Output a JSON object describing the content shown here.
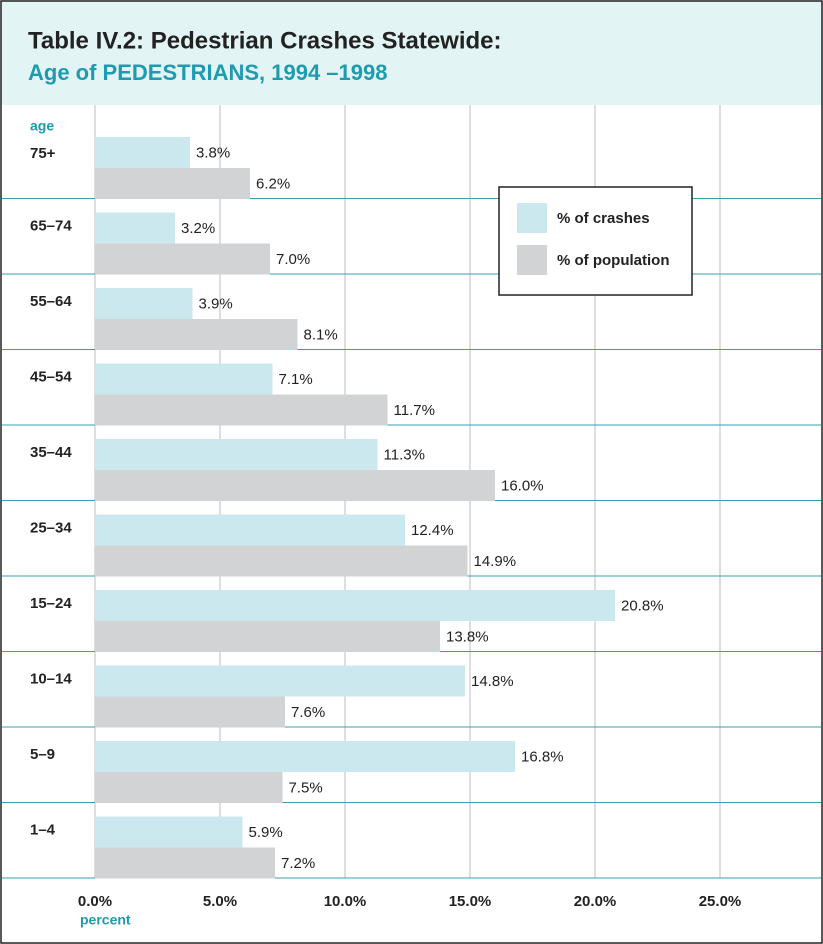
{
  "chart_data": {
    "type": "grouped-hbar",
    "title": "Table IV.2:  Pedestrian Crashes Statewide:",
    "subtitle": "Age of PEDESTRIANS, 1994 –1998",
    "ylabel": "age",
    "xlabel": "percent",
    "categories": [
      "75+",
      "65–74",
      "55–64",
      "45–54",
      "35–44",
      "25–34",
      "15–24",
      "10–14",
      "5–9",
      "1–4"
    ],
    "series": [
      {
        "name": "% of crashes",
        "color": "#cbe8ee",
        "values": [
          3.8,
          3.2,
          3.9,
          7.1,
          11.3,
          12.4,
          20.8,
          14.8,
          16.8,
          5.9
        ],
        "value_labels": [
          "3.8%",
          "3.2%",
          "3.9%",
          "7.1%",
          "11.3%",
          "12.4%",
          "20.8%",
          "14.8%",
          "16.8%",
          "5.9%"
        ]
      },
      {
        "name": "% of population",
        "color": "#d2d3d5",
        "values": [
          6.2,
          7.0,
          8.1,
          11.7,
          16.0,
          14.9,
          13.8,
          7.6,
          7.5,
          7.2
        ],
        "value_labels": [
          "6.2%",
          "7.0%",
          "8.1%",
          "11.7%",
          "16.0%",
          "14.9%",
          "13.8%",
          "7.6%",
          "7.5%",
          "7.2%"
        ]
      }
    ],
    "xlim": [
      0,
      29
    ],
    "xticks": [
      {
        "value": 0,
        "label": "0.0%"
      },
      {
        "value": 5,
        "label": "5.0%"
      },
      {
        "value": 10,
        "label": "10.0%"
      },
      {
        "value": 15,
        "label": "15.0%"
      },
      {
        "value": 20,
        "label": "20.0%"
      },
      {
        "value": 25,
        "label": "25.0%"
      }
    ],
    "grid": true,
    "legend": "upper right"
  }
}
